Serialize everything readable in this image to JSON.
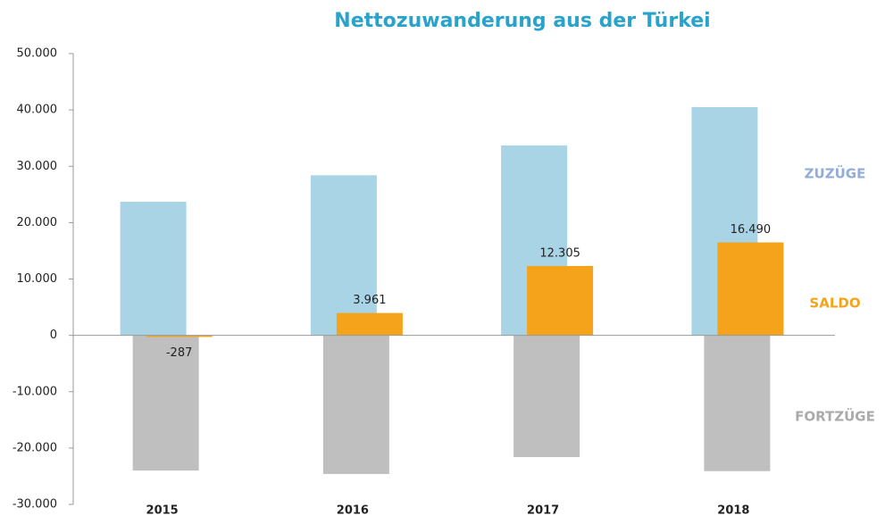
{
  "chart_data": {
    "type": "bar",
    "title": "Nettozuwanderung aus der Türkei",
    "title_color": "#2aa3cc",
    "categories": [
      "2015",
      "2016",
      "2017",
      "2018"
    ],
    "series": [
      {
        "name": "ZUZÜGE",
        "color": "#a8d4e5",
        "values": [
          23700,
          28400,
          33700,
          40500
        ]
      },
      {
        "name": "FORTZÜGE",
        "color": "#bfbfbf",
        "values": [
          -24000,
          -24600,
          -21600,
          -24100
        ]
      },
      {
        "name": "SALDO",
        "color": "#f5a31a",
        "values": [
          -287,
          3961,
          12305,
          16490
        ],
        "value_labels": [
          "-287",
          "3.961",
          "12.305",
          "16.490"
        ]
      }
    ],
    "ylim": [
      -30000,
      50000
    ],
    "yticks": [
      {
        "value": -30000,
        "label": "-30.000"
      },
      {
        "value": -20000,
        "label": "-20.000"
      },
      {
        "value": -10000,
        "label": "-10.000"
      },
      0,
      {
        "value": 10000,
        "label": "10.000"
      },
      {
        "value": 20000,
        "label": "20.000"
      },
      {
        "value": 30000,
        "label": "30.000"
      },
      {
        "value": 40000,
        "label": "40.000"
      },
      {
        "value": 50000,
        "label": "50.000"
      }
    ]
  }
}
